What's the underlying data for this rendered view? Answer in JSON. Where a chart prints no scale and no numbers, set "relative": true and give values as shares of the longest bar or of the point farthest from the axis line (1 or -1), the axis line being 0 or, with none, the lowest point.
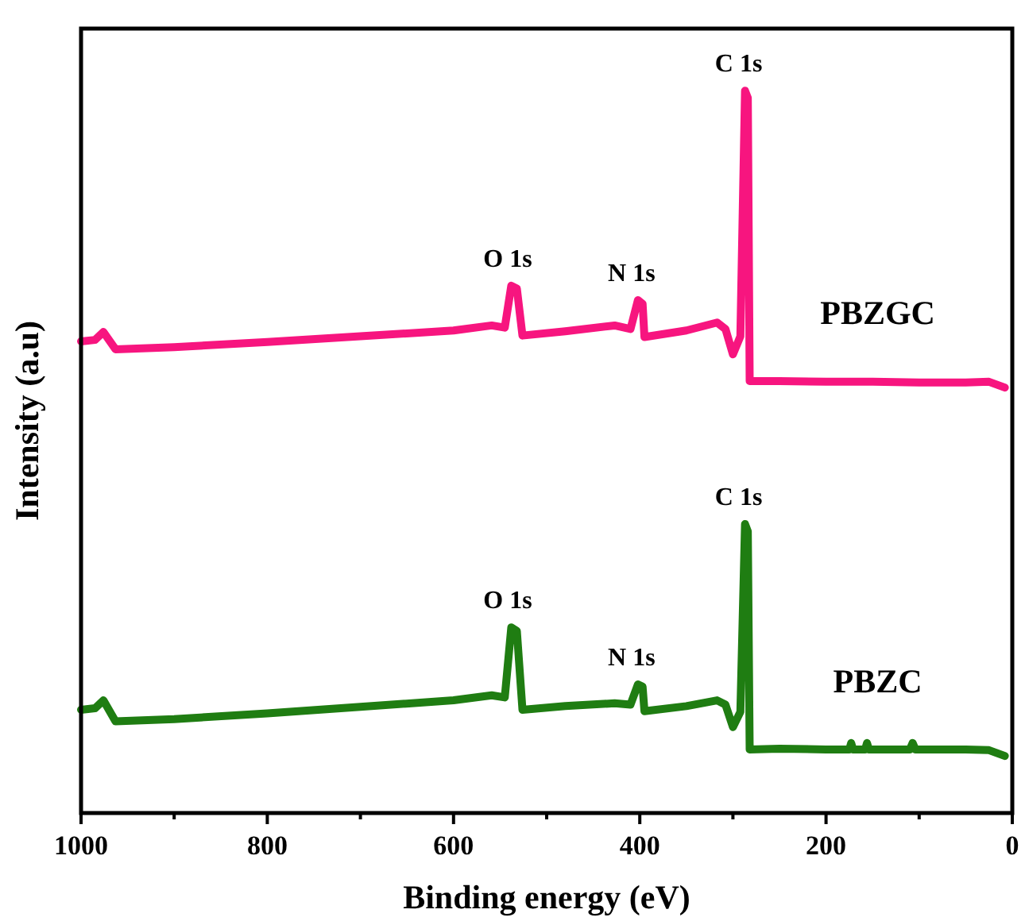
{
  "chart_data": {
    "type": "line",
    "xlabel": "Binding energy (eV)",
    "ylabel": "Intensity (a.u)",
    "relative": true,
    "xlim": [
      1000,
      0
    ],
    "xticks": [
      1000,
      {
        "value": 900,
        "label": null
      },
      800,
      {
        "value": 700,
        "label": null
      },
      600,
      {
        "value": 500,
        "label": null
      },
      400,
      {
        "value": 300,
        "label": null
      },
      200,
      {
        "value": 100,
        "label": null
      },
      0
    ],
    "grid": false,
    "marker": "none",
    "line_style": "solid",
    "series": [
      {
        "name": "PBZGC",
        "color": "#f7157f",
        "x": [
          1000,
          985,
          976,
          963,
          900,
          800,
          700,
          600,
          559,
          545,
          538,
          532,
          526,
          480,
          427,
          410,
          402,
          397,
          395,
          350,
          317,
          308,
          300,
          292,
          287,
          284,
          282,
          250,
          200,
          150,
          100,
          50,
          25,
          8
        ],
        "values": [
          0.653,
          0.655,
          0.666,
          0.642,
          0.645,
          0.652,
          0.66,
          0.668,
          0.675,
          0.672,
          0.73,
          0.726,
          0.661,
          0.667,
          0.675,
          0.67,
          0.71,
          0.705,
          0.659,
          0.668,
          0.679,
          0.67,
          0.635,
          0.66,
          1.0,
          0.99,
          0.598,
          0.598,
          0.597,
          0.597,
          0.596,
          0.596,
          0.597,
          0.589
        ]
      },
      {
        "name": "PBZC",
        "color": "#1f7d12",
        "x": [
          1000,
          985,
          976,
          963,
          900,
          800,
          700,
          600,
          559,
          545,
          538,
          532,
          526,
          480,
          427,
          410,
          402,
          397,
          395,
          350,
          317,
          308,
          300,
          292,
          287,
          284,
          282,
          250,
          200,
          175,
          173,
          171,
          158,
          156,
          154,
          110,
          107,
          104,
          50,
          25,
          8
        ],
        "values": [
          0.143,
          0.145,
          0.156,
          0.127,
          0.13,
          0.138,
          0.147,
          0.156,
          0.163,
          0.16,
          0.257,
          0.252,
          0.143,
          0.148,
          0.152,
          0.15,
          0.178,
          0.175,
          0.141,
          0.148,
          0.156,
          0.15,
          0.119,
          0.14,
          0.4,
          0.39,
          0.088,
          0.089,
          0.088,
          0.088,
          0.097,
          0.088,
          0.088,
          0.097,
          0.088,
          0.088,
          0.097,
          0.088,
          0.088,
          0.087,
          0.079
        ]
      }
    ],
    "annotations": [
      {
        "text": "C 1s",
        "x": 287,
        "y": 1.0
      },
      {
        "text": "O 1s",
        "x": 535,
        "y": 0.73
      },
      {
        "text": "N 1s",
        "x": 402,
        "y": 0.71
      },
      {
        "text": "C 1s",
        "x": 287,
        "y": 0.4
      },
      {
        "text": "O 1s",
        "x": 535,
        "y": 0.257
      },
      {
        "text": "N 1s",
        "x": 402,
        "y": 0.178
      }
    ]
  }
}
